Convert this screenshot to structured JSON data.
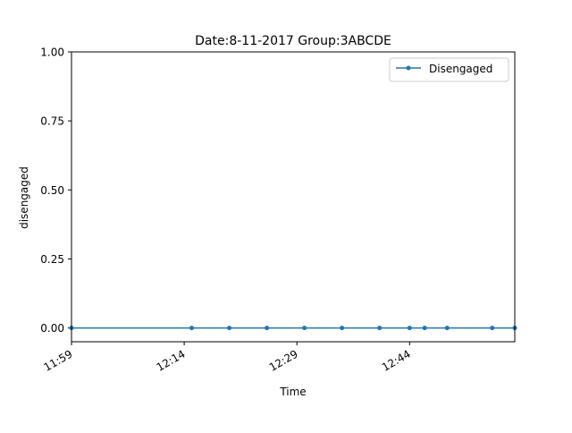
{
  "chart_data": {
    "type": "line",
    "title": "Date:8-11-2017  Group:3ABCDE",
    "xlabel": "Time",
    "ylabel": "disengaged",
    "xlim": [
      "11:59",
      "12:58"
    ],
    "ylim": [
      -0.05,
      1.0
    ],
    "x_ticks": [
      "11:59",
      "12:14",
      "12:29",
      "12:44"
    ],
    "y_ticks": [
      "0.00",
      "0.25",
      "0.50",
      "0.75",
      "1.00"
    ],
    "y_tick_values": [
      0.0,
      0.25,
      0.5,
      0.75,
      1.0
    ],
    "grid": false,
    "legend_position": "top-right",
    "series": [
      {
        "name": "Disengaged",
        "color": "#1f77b4",
        "marker": "dot",
        "x": [
          "11:59",
          "12:15",
          "12:20",
          "12:25",
          "12:30",
          "12:35",
          "12:40",
          "12:44",
          "12:46",
          "12:49",
          "12:55",
          "12:58"
        ],
        "values": [
          0,
          0,
          0,
          0,
          0,
          0,
          0,
          0,
          0,
          0,
          0,
          0
        ]
      }
    ]
  }
}
